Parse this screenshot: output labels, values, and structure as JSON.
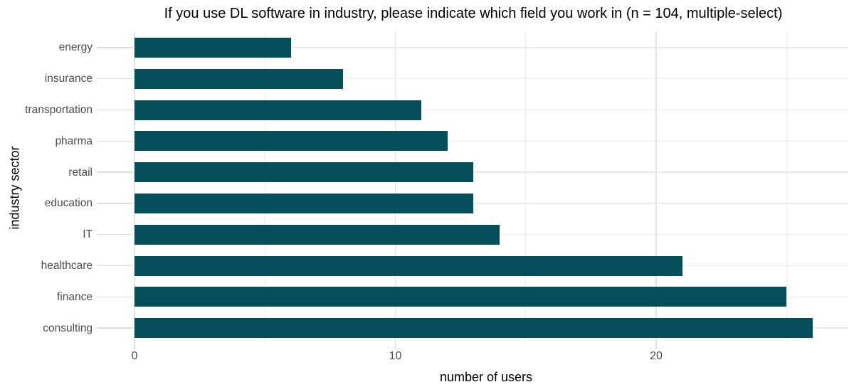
{
  "title": "If you use DL software in industry, please indicate which field you work in (n = 104, multiple-select)",
  "chart_data": {
    "type": "bar",
    "orientation": "horizontal",
    "title": "If you use DL software in industry, please indicate which field you work in (n = 104, multiple-select)",
    "xlabel": "number of users",
    "ylabel": "industry sector",
    "categories": [
      "energy",
      "insurance",
      "transportation",
      "pharma",
      "retail",
      "education",
      "IT",
      "healthcare",
      "finance",
      "consulting"
    ],
    "values": [
      6,
      8,
      11,
      12,
      13,
      13,
      14,
      21,
      25,
      26
    ],
    "xlim": [
      0,
      27.4
    ],
    "xticks": [
      0,
      10,
      20
    ],
    "minor_xticks": [
      5,
      15,
      25
    ],
    "grid": "vertical major and minor gridlines, one horizontal gridline per category row",
    "legend": false,
    "colors": {
      "bar": "#054f5a",
      "grid_major": "#e3e3e3",
      "grid_minor": "#ededed",
      "grid_row": "#eaeaea",
      "axis_tick": "#dcdcdc",
      "tick_label": "#4d4d4d",
      "title_text": "#000000"
    }
  }
}
